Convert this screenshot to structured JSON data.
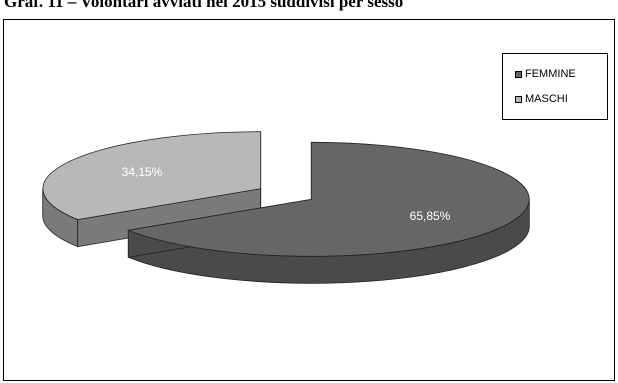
{
  "caption": "Graf. 11 – Volontari avviati nel 2015 suddivisi per sesso",
  "colors": {
    "femmine_top": "#666666",
    "femmine_side": "#4a4a4a",
    "maschi_top": "#b8b8b8",
    "maschi_side": "#7a7a7a",
    "label": "#ffffff"
  },
  "chart_data": {
    "type": "pie",
    "title": "Graf. 11 – Volontari avviati nel 2015 suddivisi per sesso",
    "style": "3d-exploded",
    "legend_position": "top-right",
    "slices": [
      {
        "name": "FEMMINE",
        "value": 65.85,
        "label": "65,85%"
      },
      {
        "name": "MASCHI",
        "value": 34.15,
        "label": "34,15%"
      }
    ]
  }
}
